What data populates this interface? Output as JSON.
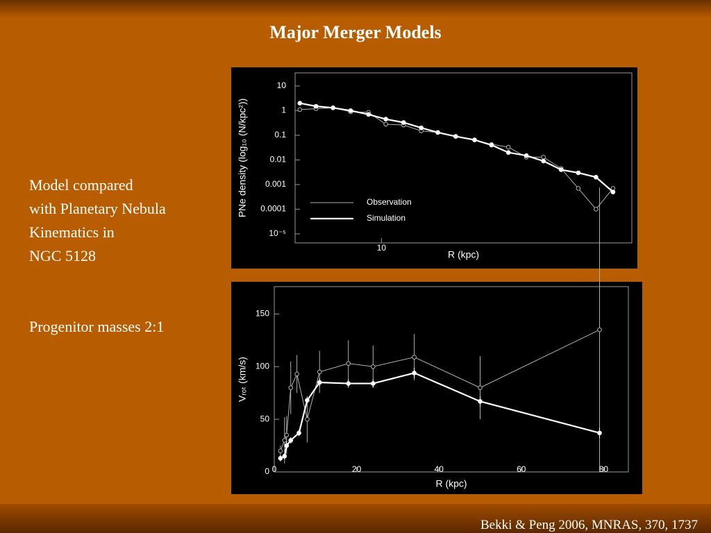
{
  "slide": {
    "title": "Major Merger Models",
    "body": [
      "Model compared",
      "with Planetary Nebula",
      "Kinematics in",
      "NGC 5128",
      "Progenitor masses 2:1"
    ],
    "footer": "Bekki & Peng 2006, MNRAS, 370, 1737"
  },
  "chart_data": [
    {
      "type": "line",
      "x_label": "R (kpc)",
      "y_label": "PNe density (log₁₀ (N/kpc²))",
      "xscale": "log",
      "yscale": "log",
      "xlim": [
        4.6,
        95
      ],
      "ylim": [
        4.3e-06,
        34
      ],
      "xticks": [
        10
      ],
      "yticks": [
        10,
        1,
        0.1,
        0.01,
        0.001,
        0.0001,
        {
          "value": 1e-05,
          "label": "10⁻⁵"
        }
      ],
      "legend": "lower left",
      "x": [
        4.8,
        5.55,
        6.47,
        7.58,
        8.9,
        10.4,
        12.2,
        14.3,
        16.6,
        19.5,
        23.1,
        26.9,
        31.3,
        36.8,
        42.9,
        50.3,
        58.7,
        68.8,
        80.2
      ],
      "series": [
        {
          "name": "Observation",
          "color": "#b0b0b0",
          "linewidth": 1,
          "marker": "open",
          "values": [
            1.1,
            1.2,
            1.3,
            0.9,
            0.85,
            0.28,
            0.26,
            0.15,
            0.13,
            0.09,
            0.065,
            0.043,
            0.033,
            0.013,
            0.013,
            0.0045,
            0.0007,
            0.0001,
            0.0007
          ]
        },
        {
          "name": "Simulation",
          "color": "#ffffff",
          "linewidth": 2.2,
          "marker": "filled",
          "values": [
            2,
            1.5,
            1.3,
            1.0,
            0.7,
            0.45,
            0.33,
            0.2,
            0.13,
            0.09,
            0.065,
            0.04,
            0.02,
            0.015,
            0.009,
            0.004,
            0.003,
            0.002,
            0.0005
          ]
        }
      ]
    },
    {
      "type": "line",
      "x_label": "R (kpc)",
      "y_label": "Vᵣₒₜ (km/s)",
      "xlim": [
        0,
        86
      ],
      "ylim": [
        0,
        176
      ],
      "xticks": [
        0,
        20,
        40,
        60,
        80
      ],
      "yticks": [
        0,
        50,
        100,
        150
      ],
      "series": [
        {
          "color": "#b0b0b0",
          "linewidth": 1,
          "marker": "open",
          "x": [
            1.5,
            2.5,
            3,
            4,
            5.5,
            8,
            11,
            18,
            24,
            34,
            50,
            79
          ],
          "values": [
            20,
            30,
            35,
            80,
            93,
            50,
            95,
            103,
            100,
            109,
            80,
            135
          ],
          "errors": [
            5,
            22,
            18,
            25,
            18,
            22,
            20,
            22,
            20,
            22,
            30,
            135
          ]
        },
        {
          "color": "#ffffff",
          "linewidth": 2.2,
          "marker": "filled",
          "x": [
            1.5,
            2.5,
            3,
            4,
            6,
            8,
            11,
            18,
            24,
            34,
            50,
            79
          ],
          "values": [
            13,
            15,
            25,
            30,
            37,
            68,
            85,
            84,
            84,
            94,
            67,
            37
          ],
          "errors": [
            3,
            3,
            4,
            3,
            3,
            3,
            4,
            4,
            4,
            5,
            5,
            5
          ]
        }
      ]
    }
  ]
}
